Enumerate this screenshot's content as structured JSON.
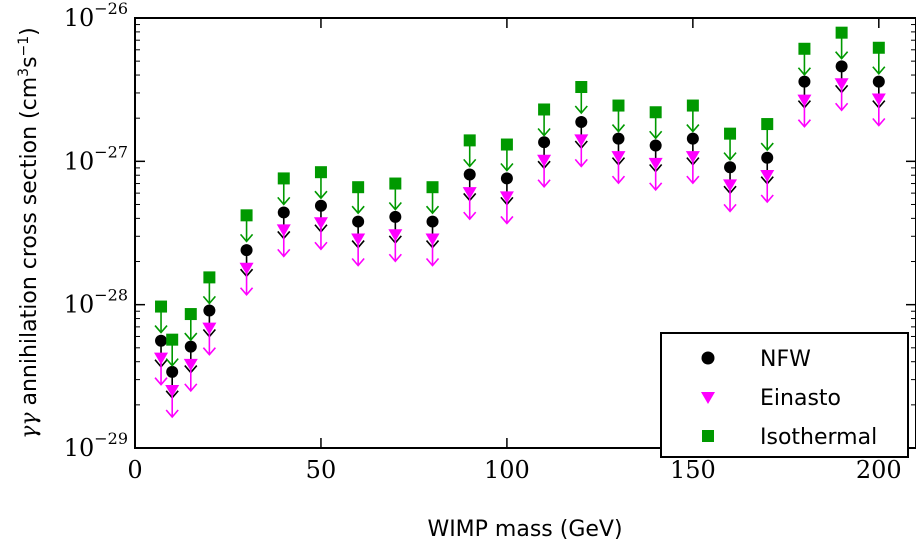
{
  "chart_data": {
    "type": "scatter",
    "xlabel": "WIMP mass (GeV)",
    "ylabel_prefix": "γγ",
    "ylabel_main": " annihilation cross section (cm",
    "ylabel_sup1": "3",
    "ylabel_mid": "s",
    "ylabel_sup2": "−1",
    "ylabel_end": ")",
    "xlim": [
      0,
      210
    ],
    "ylim": [
      1e-29,
      1e-26
    ],
    "yscale": "log",
    "x_ticks": [
      {
        "value": 0,
        "label": "0"
      },
      {
        "value": 50,
        "label": "50"
      },
      {
        "value": 100,
        "label": "100"
      },
      {
        "value": 150,
        "label": "150"
      },
      {
        "value": 200,
        "label": "200"
      }
    ],
    "y_ticks": [
      {
        "value": 1e-29,
        "base": "10",
        "exp": "−29"
      },
      {
        "value": 1e-28,
        "base": "10",
        "exp": "−28"
      },
      {
        "value": 1e-27,
        "base": "10",
        "exp": "−27"
      },
      {
        "value": 1e-26,
        "base": "10",
        "exp": "−26"
      }
    ],
    "upper_limits": true,
    "legend_position": "bottom-right",
    "x": [
      7,
      10,
      15,
      20,
      30,
      40,
      50,
      60,
      70,
      80,
      90,
      100,
      110,
      120,
      130,
      140,
      150,
      160,
      170,
      180,
      190,
      200
    ],
    "series": [
      {
        "name": "NFW",
        "marker": "circle",
        "color": "#000000",
        "arrow_color": "#000000",
        "values": [
          5.6e-29,
          3.4e-29,
          5.1e-29,
          9.1e-29,
          2.4e-28,
          4.4e-28,
          4.9e-28,
          3.8e-28,
          4.1e-28,
          3.8e-28,
          8.1e-28,
          7.6e-28,
          1.36e-27,
          1.88e-27,
          1.44e-27,
          1.29e-27,
          1.44e-27,
          9.1e-28,
          1.06e-27,
          3.6e-27,
          4.6e-27,
          3.6e-27
        ]
      },
      {
        "name": "Einasto",
        "marker": "triangle-down",
        "color": "#ff00ff",
        "arrow_color": "#ff00ff",
        "values": [
          4.2e-29,
          2.5e-29,
          3.8e-29,
          6.8e-29,
          1.78e-28,
          3.3e-28,
          3.7e-28,
          2.85e-28,
          3.05e-28,
          2.85e-28,
          6e-28,
          5.6e-28,
          1.01e-27,
          1.4e-27,
          1.07e-27,
          9.6e-28,
          1.07e-27,
          6.8e-28,
          7.9e-28,
          2.65e-27,
          3.45e-27,
          2.7e-27
        ]
      },
      {
        "name": "Isothermal",
        "marker": "square",
        "color": "#009900",
        "arrow_color": "#009900",
        "values": [
          9.7e-29,
          5.7e-29,
          8.6e-29,
          1.55e-28,
          4.2e-28,
          7.6e-28,
          8.4e-28,
          6.6e-28,
          7e-28,
          6.6e-28,
          1.4e-27,
          1.31e-27,
          2.3e-27,
          3.3e-27,
          2.45e-27,
          2.2e-27,
          2.45e-27,
          1.56e-27,
          1.82e-27,
          6.1e-27,
          7.9e-27,
          6.2e-27
        ]
      }
    ]
  }
}
